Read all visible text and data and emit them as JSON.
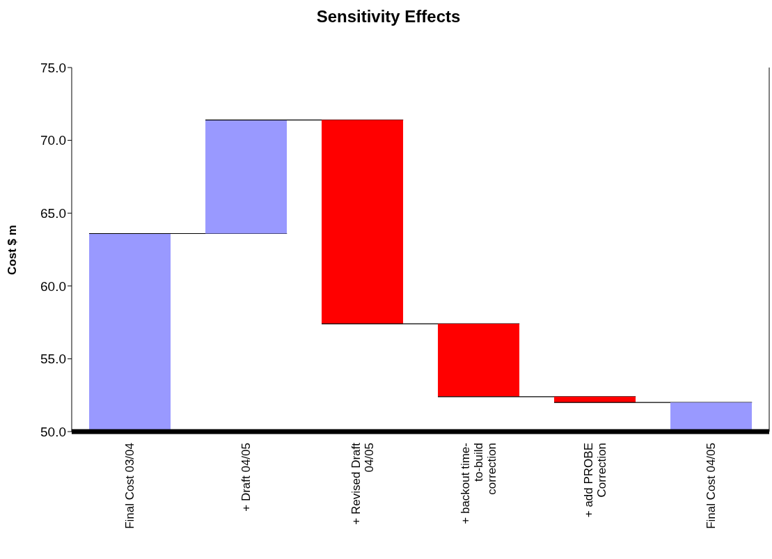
{
  "chart_data": {
    "type": "bar",
    "title": "Sensitivity Effects",
    "ylabel": "Cost $ m",
    "categories": [
      "Final Cost 03/04",
      "+ Draft 04/05",
      "+ Revised Draft 04/05",
      "+ backout time-to-build correction",
      "+ add PROBE Correction",
      "Final Cost 04/05"
    ],
    "values": [
      63.6,
      7.8,
      -14.0,
      -5.0,
      -0.4,
      52.0
    ],
    "base": [
      null,
      63.6,
      71.4,
      57.4,
      52.4,
      null
    ],
    "colors": [
      "#9999ff",
      "#9999ff",
      "#ff0000",
      "#ff0000",
      "#ff0000",
      "#9999ff"
    ],
    "ylim": [
      50,
      75
    ],
    "yticks": [
      {
        "value": 50,
        "label": "50.0"
      },
      {
        "value": 55,
        "label": "55.0"
      },
      {
        "value": 60,
        "label": "60.0"
      },
      {
        "value": 65,
        "label": "65.0"
      },
      {
        "value": 70,
        "label": "70.0"
      },
      {
        "value": 75,
        "label": "75.0"
      }
    ]
  }
}
